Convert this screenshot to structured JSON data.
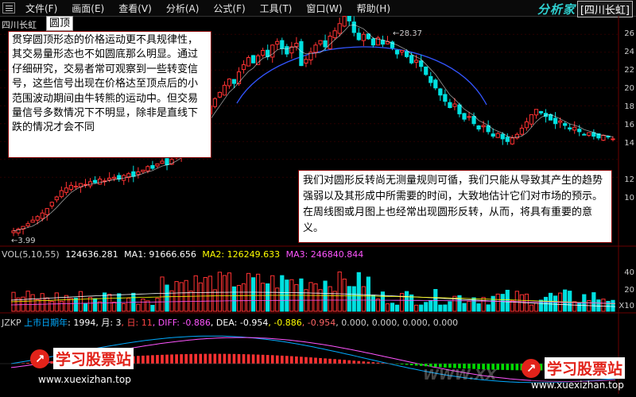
{
  "menu": {
    "items": [
      "文件(F)",
      "画面(E)",
      "查看(V)",
      "分析(A)",
      "公式(F)",
      "工具(T)",
      "窗口(W)",
      "帮助(H)"
    ],
    "brand": "分析家",
    "stock": "[四川长虹]"
  },
  "chart": {
    "stock_name": "四川长虹",
    "pattern": "圆顶",
    "high_label": "28.37",
    "low_label": "3.99",
    "right_axis": [
      "26",
      "24",
      "22",
      "20",
      "18",
      "16",
      "14",
      "12",
      "10"
    ]
  },
  "notes": {
    "left": "贯穿圆顶形态的价格运动更不具规律性，其交易量形态也不如圆底那么明显。通过仔细研究，交易者常可观察到一些转变信号，这些信号出现在价格达至顶点后的小范围波动期间由牛转熊的运动中。但交易量信号多数情况下不明显，除非是直线下跌的情况才会不同",
    "right": "我们对圆形反转尚无测量规则可循，我们只能从导致其产生的趋势强弱以及其形成中所需要的时间，大致地估计它们对市场的预示。在周线图或月图上也经常出现圆形反转，从而，将具有重要的意义。"
  },
  "volume": {
    "title": "VOL(5,10,55)",
    "vol": "124636.281",
    "ma1": "MA1: 91666.656",
    "ma2": "MA2: 126249.633",
    "ma3": "MA3: 246840.844",
    "axis": [
      "40",
      "20",
      "X10"
    ],
    "colors": {
      "ma1": "#ffffff",
      "ma2": "#ffff00",
      "ma3": "#ff00ff"
    }
  },
  "indicator": {
    "title": "JZKP",
    "listing_label": "上市日期年",
    "year": ": 1994",
    "month": ", 月: 3",
    "day": ", 日: 11",
    "diff": ", DIFF: -0.886",
    "dea": ", DEA: -0.954",
    "v1": ", -0.886",
    "v2": ", -0.954",
    "rest": ", 0.000, 0.000, 0.000, 0.000"
  },
  "watermarks": {
    "brand": "学习股票站",
    "url": "www.xuexizhan.top",
    "corner": "WWW.XX"
  },
  "chart_data": {
    "type": "candlestick",
    "title": "四川长虹",
    "high": 28.37,
    "low": 3.99,
    "ylim": [
      3,
      27
    ],
    "closes": [
      4.0,
      4.2,
      4.5,
      4.8,
      5.2,
      5.6,
      6.0,
      6.5,
      7.2,
      7.8,
      8.5,
      8.8,
      9.1,
      9.0,
      9.3,
      9.2,
      9.5,
      9.4,
      9.8,
      9.6,
      9.9,
      10.0,
      9.8,
      10.2,
      10.4,
      10.1,
      10.6,
      10.8,
      11.2,
      11.0,
      11.5,
      11.8,
      11.4,
      12.0,
      12.5,
      13.2,
      14.0,
      14.8,
      15.6,
      16.5,
      17.2,
      18.0,
      18.8,
      19.5,
      20.3,
      21.0,
      20.5,
      21.8,
      22.6,
      23.4,
      22.8,
      23.6,
      24.2,
      23.5,
      24.8,
      25.2,
      24.4,
      23.8,
      24.6,
      25.0,
      22.5,
      23.2,
      24.0,
      24.8,
      25.3,
      24.6,
      25.8,
      26.4,
      27.2,
      28.0,
      27.5,
      26.2,
      25.4,
      26.0,
      25.5,
      24.8,
      25.6,
      24.9,
      25.2,
      24.5,
      23.8,
      24.2,
      23.5,
      22.8,
      23.1,
      22.4,
      21.5,
      20.6,
      20.0,
      19.2,
      18.5,
      17.8,
      18.2,
      17.1,
      16.5,
      16.8,
      16.0,
      15.4,
      15.8,
      15.1,
      14.6,
      14.9,
      14.3,
      14.0,
      14.4,
      14.8,
      15.5,
      16.2,
      17.0,
      17.6,
      17.2,
      16.8,
      16.4,
      16.0,
      16.3,
      15.8,
      15.4,
      15.6,
      15.1,
      14.8,
      15.0,
      14.6,
      14.4,
      14.7,
      14.5,
      14.3
    ],
    "volume_axis": [
      "40",
      "20"
    ]
  }
}
